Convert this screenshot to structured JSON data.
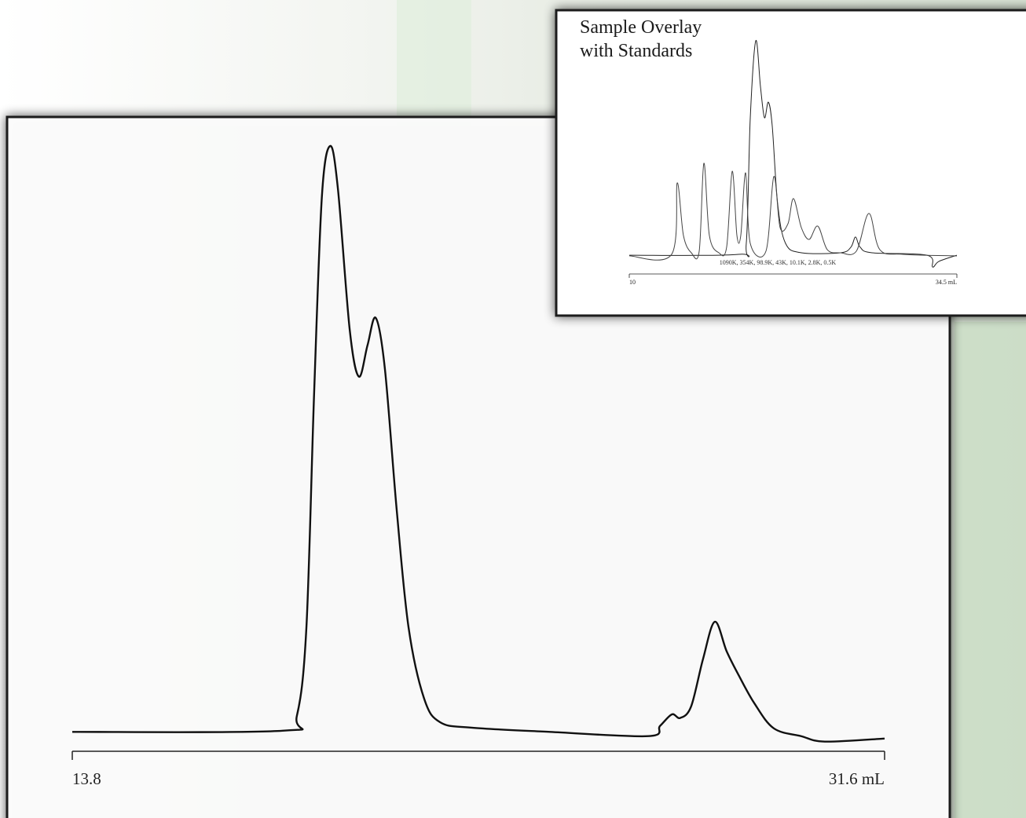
{
  "chart_data": [
    {
      "type": "line",
      "x": [
        13.8,
        18.41,
        18.72,
        18.93,
        19.1,
        19.27,
        19.45,
        19.62,
        19.88,
        20.08,
        20.27,
        20.45,
        20.65,
        20.91,
        21.17,
        21.51,
        21.86,
        22.55,
        24.27,
        26.42,
        26.68,
        26.94,
        27.12,
        27.36,
        27.62,
        27.88,
        28.14,
        28.4,
        28.74,
        29.17,
        29.77,
        30.29,
        31.6
      ],
      "values": [
        3.2,
        3.4,
        5.8,
        20.4,
        59.3,
        91.7,
        100,
        93,
        69.6,
        61.9,
        67.1,
        71.6,
        63.2,
        39.8,
        20.4,
        8.7,
        4.8,
        3.9,
        3.2,
        2.5,
        4.2,
        6.1,
        5.5,
        7.4,
        15.2,
        21.4,
        16.5,
        12.6,
        8.0,
        3.8,
        2.5,
        1.6,
        2.1
      ],
      "color": "#111111",
      "xlim": [
        13.8,
        31.6
      ],
      "xticks": [
        13.8,
        {
          "value": 31.6,
          "label": "31.6 mL"
        }
      ],
      "ylim": [
        0,
        100
      ]
    },
    {
      "type": "line",
      "title": [
        "Sample Overlay",
        "with Standards"
      ],
      "annotation": "1090K, 354K, 98.9K, 43K, 10.1K, 2.8K, 0.5K",
      "series": [
        {
          "color": "#222222",
          "x": [
            10,
            18.17,
            18.75,
            19.05,
            19.46,
            19.81,
            20.11,
            20.4,
            20.69,
            21.1,
            21.69,
            22.87,
            25.8,
            26.57,
            26.92,
            27.27,
            28.15,
            32.27,
            32.68,
            33.15,
            34.5
          ],
          "values": [
            3.5,
            3.9,
            8.8,
            65.4,
            100,
            79.5,
            65.4,
            72.4,
            61.8,
            26.5,
            8.8,
            4.6,
            4.6,
            7.1,
            11.7,
            7.1,
            4.6,
            3.5,
            -1.8,
            0.7,
            3.5
          ]
        },
        {
          "color": "#444444",
          "x": [
            10,
            13.17,
            13.58,
            14.05,
            14.64,
            15.23,
            15.58,
            15.99,
            16.7,
            17.28,
            17.7,
            18.05,
            18.34,
            18.7,
            19.05,
            20.22,
            20.81,
            21.28,
            21.87,
            22.28,
            22.87,
            23.45,
            24.1,
            24.81,
            25.8,
            26.98,
            27.92,
            28.74,
            30.5,
            34.5
          ],
          "values": [
            3.2,
            3.9,
            36.0,
            12.4,
            4.6,
            5.3,
            44.9,
            12.4,
            4.6,
            7.1,
            41.3,
            12.4,
            12.4,
            40.6,
            8.8,
            5.3,
            38.9,
            15.9,
            17.7,
            29.0,
            15.9,
            10.6,
            16.6,
            6.0,
            4.6,
            5.3,
            22.3,
            6.0,
            3.9,
            3.2
          ]
        }
      ],
      "xlim": [
        10,
        34.5
      ],
      "xticks": [
        10,
        {
          "value": 34.5,
          "label": "34.5 mL"
        }
      ],
      "ylim": [
        0,
        100
      ]
    }
  ]
}
